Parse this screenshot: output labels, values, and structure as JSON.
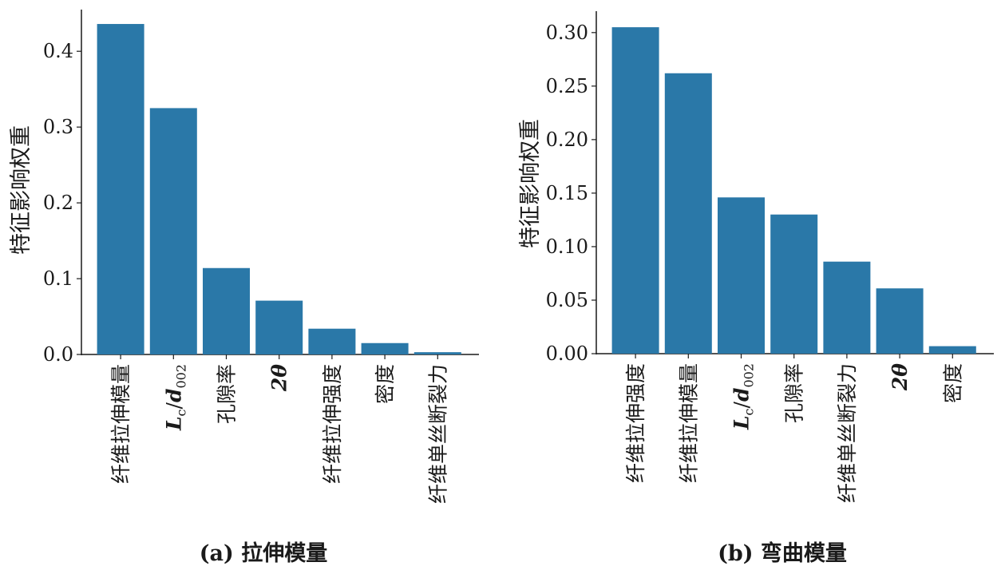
{
  "chart_data": [
    {
      "type": "bar",
      "caption": "(a) 拉伸模量",
      "ylabel": "特征影响权重",
      "xlabel": "",
      "ylim": [
        0,
        0.455
      ],
      "yticks": [
        "0.0",
        "0.1",
        "0.2",
        "0.3",
        "0.4"
      ],
      "ytick_values": [
        0,
        0.1,
        0.2,
        0.3,
        0.4
      ],
      "categories": [
        "纤维拉伸模量",
        "Lc/d002",
        "孔隙率",
        "2θ",
        "纤维拉伸强度",
        "密度",
        "纤维单丝断裂力"
      ],
      "values": [
        0.436,
        0.325,
        0.114,
        0.071,
        0.034,
        0.015,
        0.003
      ],
      "color": "#2a78a8"
    },
    {
      "type": "bar",
      "caption": "(b) 弯曲模量",
      "ylabel": "特征影响权重",
      "xlabel": "",
      "ylim": [
        0,
        0.32
      ],
      "yticks": [
        "0.00",
        "0.05",
        "0.10",
        "0.15",
        "0.20",
        "0.25",
        "0.30"
      ],
      "ytick_values": [
        0,
        0.05,
        0.1,
        0.15,
        0.2,
        0.25,
        0.3
      ],
      "categories": [
        "纤维拉伸强度",
        "纤维拉伸模量",
        "Lc/d002",
        "孔隙率",
        "纤维单丝断裂力",
        "2θ",
        "密度"
      ],
      "values": [
        0.305,
        0.262,
        0.146,
        0.13,
        0.086,
        0.061,
        0.007
      ],
      "color": "#2a78a8"
    }
  ]
}
